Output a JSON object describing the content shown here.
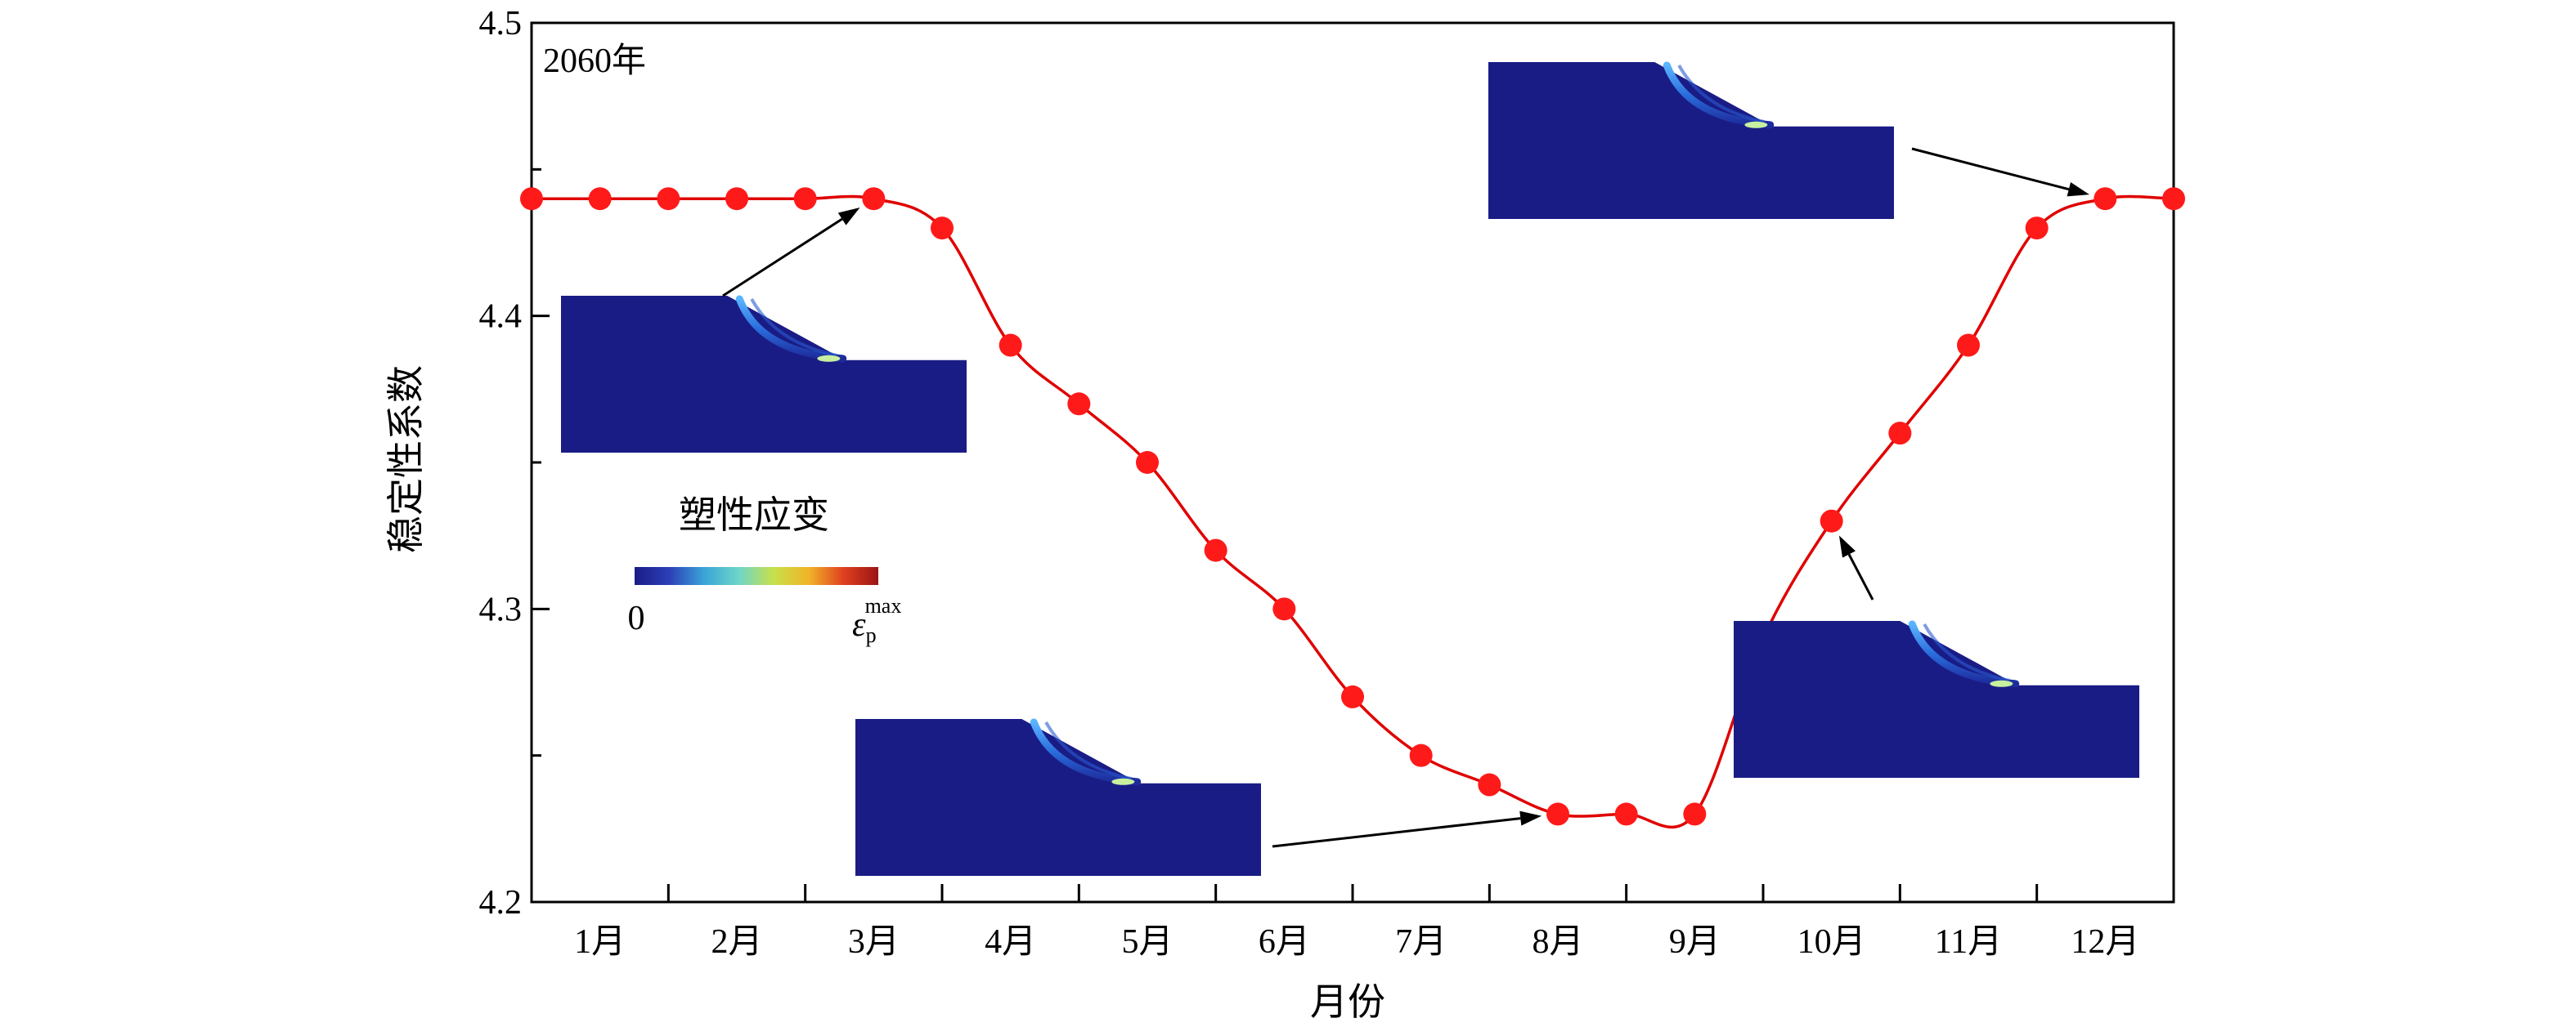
{
  "chart_data": {
    "type": "line",
    "title": "",
    "annotation": "2060年",
    "xlabel": "月份",
    "ylabel": "稳定性系数",
    "ylim": [
      4.2,
      4.5
    ],
    "y_ticks": [
      4.2,
      4.3,
      4.4,
      4.5
    ],
    "y_tick_labels": [
      "4.2",
      "4.3",
      "4.4",
      "4.5"
    ],
    "x_range": [
      0.5,
      12.5
    ],
    "categories": [
      "1月",
      "2月",
      "3月",
      "4月",
      "5月",
      "6月",
      "7月",
      "8月",
      "9月",
      "10月",
      "11月",
      "12月"
    ],
    "grid": false,
    "series": [
      {
        "color": "#e00000",
        "marker_color": "#ff1a1a",
        "x": [
          0.5,
          1.0,
          1.5,
          2.0,
          2.5,
          3.0,
          3.5,
          4.0,
          4.5,
          5.0,
          5.5,
          6.0,
          6.5,
          7.0,
          7.5,
          8.0,
          8.5,
          9.0,
          9.5,
          10.0,
          10.5,
          11.0,
          11.5,
          12.0,
          12.5
        ],
        "y": [
          4.44,
          4.44,
          4.44,
          4.44,
          4.44,
          4.44,
          4.43,
          4.39,
          4.37,
          4.35,
          4.32,
          4.3,
          4.27,
          4.25,
          4.24,
          4.23,
          4.23,
          4.23,
          4.29,
          4.33,
          4.36,
          4.39,
          4.43,
          4.44,
          4.44
        ]
      }
    ],
    "colorbar": {
      "title": "塑性应变",
      "min_label": "0",
      "max_label_main": "ε",
      "max_label_sub": "p",
      "max_label_sup": "max",
      "colors": [
        "#1a1c86",
        "#2d3fb8",
        "#3aa4d8",
        "#6ed6c8",
        "#c8e04a",
        "#f0b428",
        "#e04020",
        "#9a1414"
      ]
    },
    "insets": [
      {
        "target_x": 3.0,
        "target_y": 4.44
      },
      {
        "target_x": 8.0,
        "target_y": 4.23
      },
      {
        "target_x": 10.0,
        "target_y": 4.33
      },
      {
        "target_x": 12.0,
        "target_y": 4.44
      }
    ]
  }
}
